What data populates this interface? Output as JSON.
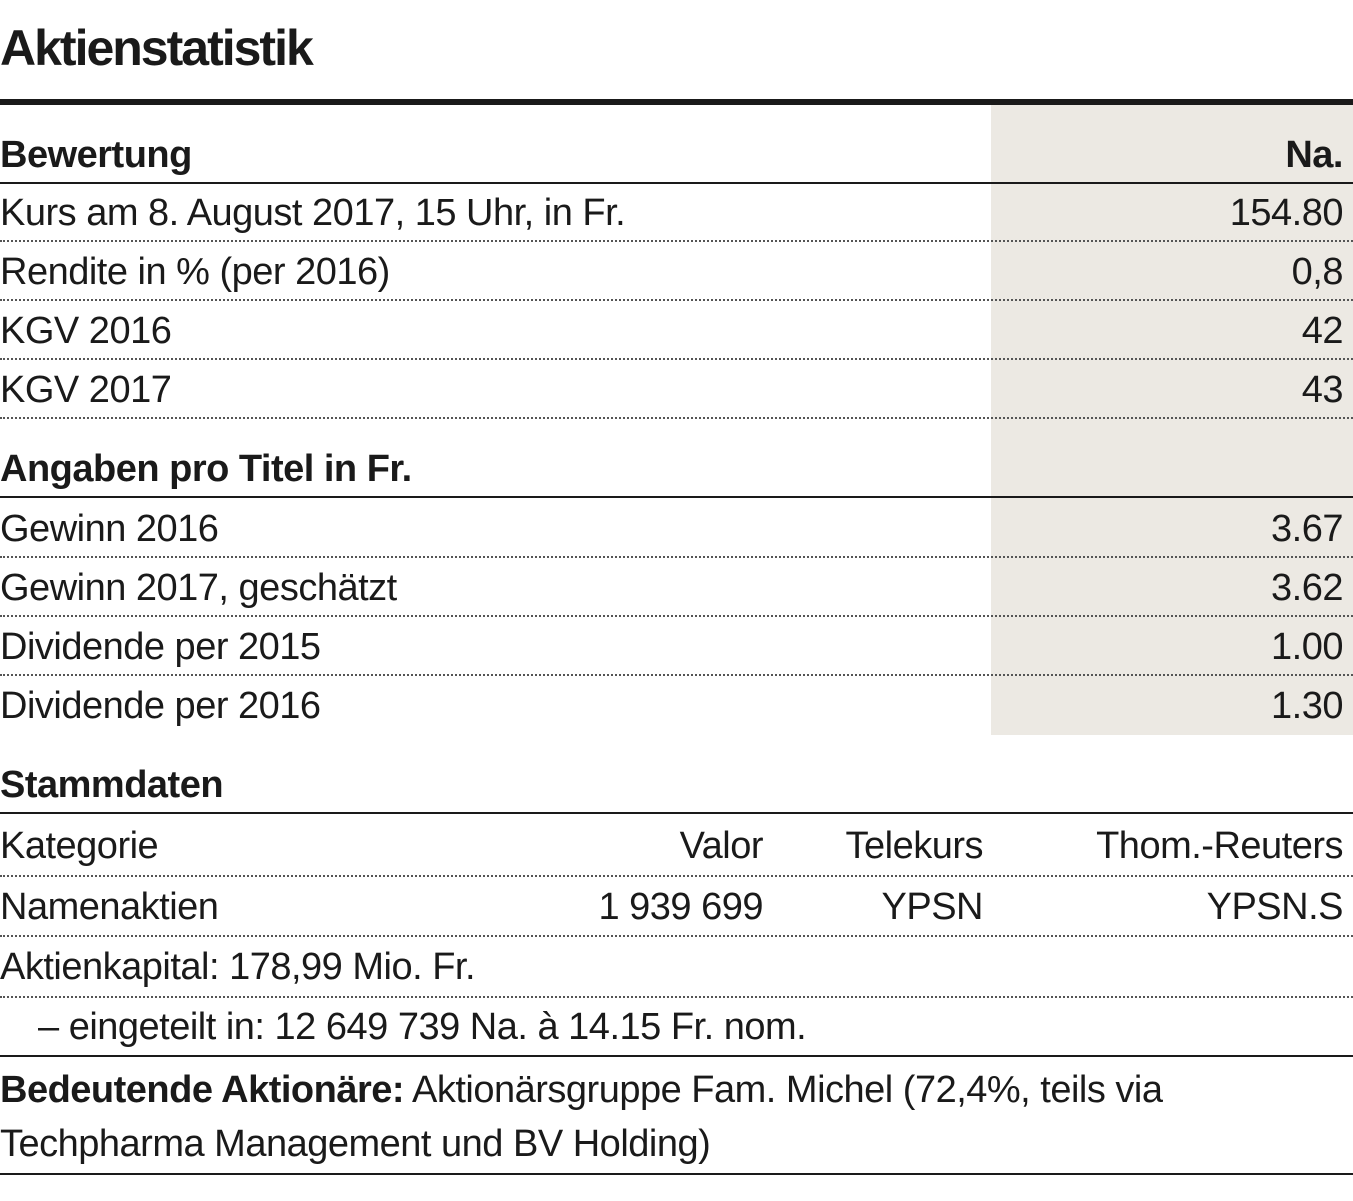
{
  "title": "Aktienstatistik",
  "bewertung": {
    "heading": "Bewertung",
    "column": "Na.",
    "rows": [
      {
        "label": "Kurs am 8. August 2017, 15 Uhr, in Fr.",
        "value": "154.80"
      },
      {
        "label": "Rendite in % (per 2016)",
        "value": "0,8"
      },
      {
        "label": "KGV 2016",
        "value": "42"
      },
      {
        "label": "KGV 2017",
        "value": "43"
      }
    ]
  },
  "angaben": {
    "heading": "Angaben pro Titel in Fr.",
    "rows": [
      {
        "label": "Gewinn 2016",
        "value": "3.67"
      },
      {
        "label": "Gewinn 2017, geschätzt",
        "value": "3.62"
      },
      {
        "label": "Dividende per 2015",
        "value": "1.00"
      },
      {
        "label": "Dividende per 2016",
        "value": "1.30"
      }
    ]
  },
  "stammdaten": {
    "heading": "Stammdaten",
    "headers": [
      "Kategorie",
      "Valor",
      "Telekurs",
      "Thom.-Reuters"
    ],
    "row": [
      "Namenaktien",
      "1 939 699",
      "YPSN",
      "YPSN.S"
    ],
    "aktienkapital": "Aktienkapital: 178,99 Mio. Fr.",
    "eingeteilt": "– eingeteilt in: 12 649 739 Na. à 14.15 Fr. nom."
  },
  "aktionaere": {
    "label": "Bedeutende Aktionäre:",
    "text": " Aktionärsgruppe Fam. Michel (72,4%, teils via Techpharma Management und BV Holding)"
  },
  "colors": {
    "shade": "#ece9e3",
    "text": "#1a1a1a"
  }
}
